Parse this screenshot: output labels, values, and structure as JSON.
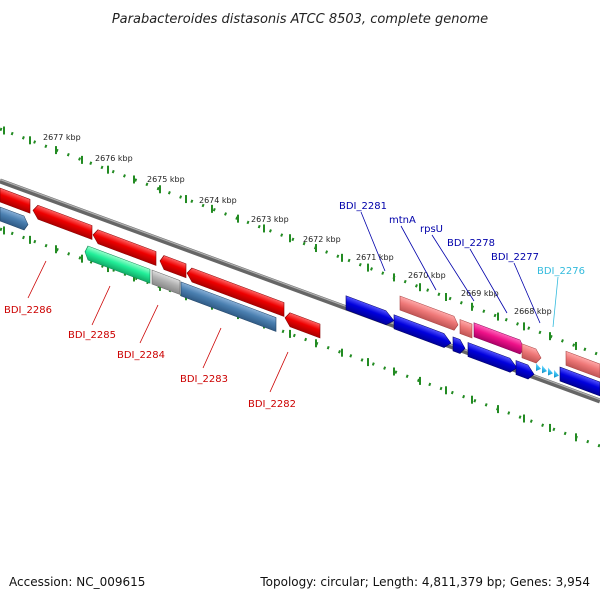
{
  "title": "Parabacteroides distasonis ATCC 8503, complete genome",
  "footer": {
    "accession": "Accession: NC_009615",
    "summary": "Topology: circular; Length: 4,811,379 bp; Genes: 3,954"
  },
  "scale_labels": [
    "2677 kbp",
    "2676 kbp",
    "2675 kbp",
    "2674 kbp",
    "2673 kbp",
    "2672 kbp",
    "2671 kbp",
    "2670 kbp",
    "2669 kbp",
    "2668 kbp"
  ],
  "gene_labels_upper": [
    {
      "text": "BDI_2281",
      "color": "#0000aa"
    },
    {
      "text": "mtnA",
      "color": "#0000aa"
    },
    {
      "text": "rpsU",
      "color": "#0000aa"
    },
    {
      "text": "BDI_2278",
      "color": "#0000aa"
    },
    {
      "text": "BDI_2277",
      "color": "#0000aa"
    },
    {
      "text": "BDI_2276",
      "color": "#33bbdd"
    }
  ],
  "gene_labels_lower": [
    {
      "text": "BDI_2286",
      "color": "#cc0000"
    },
    {
      "text": "BDI_2285",
      "color": "#cc0000"
    },
    {
      "text": "BDI_2284",
      "color": "#cc0000"
    },
    {
      "text": "BDI_2283",
      "color": "#cc0000"
    },
    {
      "text": "BDI_2282",
      "color": "#cc0000"
    }
  ],
  "colors": {
    "backbone": "#808080",
    "scale_dots": "#228b22",
    "red_gene": "#ee0000",
    "blue_gene": "#0000dd",
    "salmon_gene": "#ee7777",
    "magenta_gene": "#ee1188",
    "teal_gene": "#22ee99",
    "steel_gene": "#4a7fb0",
    "grey_gene": "#b0b0b0",
    "cyan_gene": "#33bbee"
  }
}
